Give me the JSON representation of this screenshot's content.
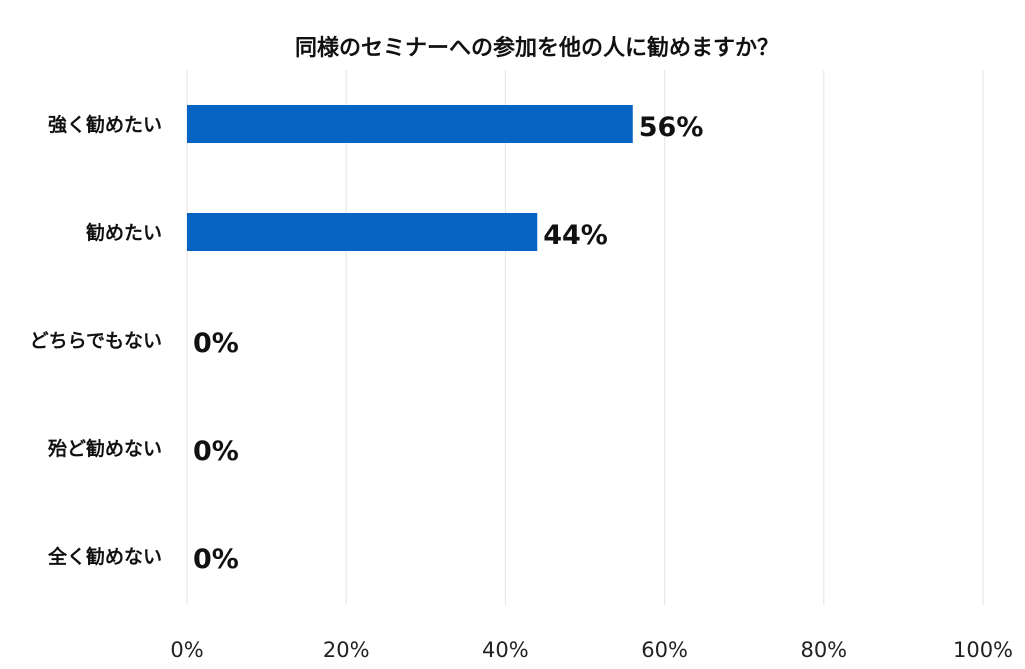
{
  "chart_data": {
    "type": "bar",
    "orientation": "horizontal",
    "title": "同様のセミナーへの参加を他の人に勧めますか？",
    "categories": [
      "強く勧めたい",
      "勧めたい",
      "どちらでもない",
      "殆ど勧めない",
      "全く勧めない"
    ],
    "values": [
      56,
      44,
      0,
      0,
      0
    ],
    "value_labels": [
      "56%",
      "44%",
      "0%",
      "0%",
      "0%"
    ],
    "xlim": [
      0,
      100
    ],
    "x_ticks": [
      0,
      20,
      40,
      60,
      80,
      100
    ],
    "x_tick_labels": [
      "0%",
      "20%",
      "40%",
      "60%",
      "80%",
      "100%"
    ],
    "grid": "vertical",
    "legend": "none",
    "bar_color": "#0563C1"
  }
}
